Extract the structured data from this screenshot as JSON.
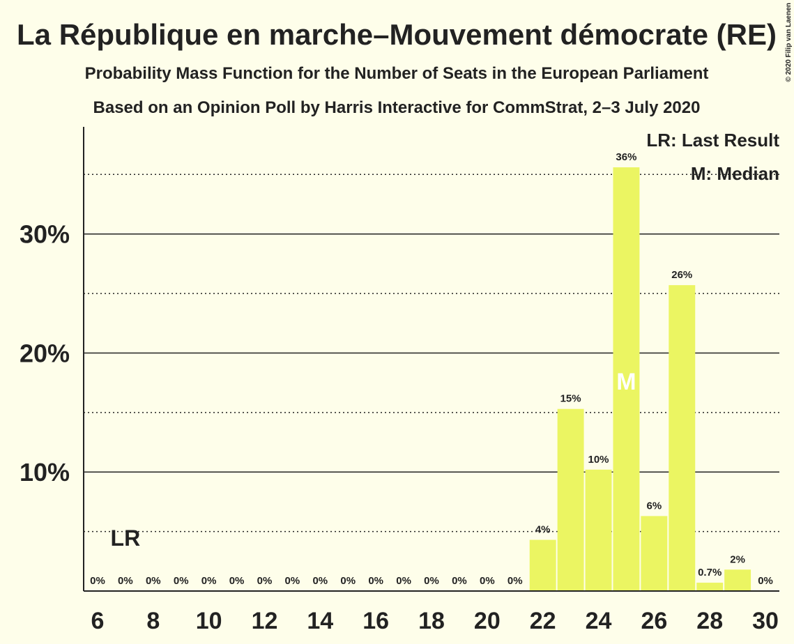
{
  "chart_data": {
    "type": "bar",
    "title": "La République en marche–Mouvement démocrate (RE)",
    "subtitle": "Probability Mass Function for the Number of Seats in the European Parliament",
    "subtitle2": "Based on an Opinion Poll by Harris Interactive for CommStrat, 2–3 July 2020",
    "copyright": "© 2020 Filip van Laenen",
    "x": [
      6,
      7,
      8,
      9,
      10,
      11,
      12,
      13,
      14,
      15,
      16,
      17,
      18,
      19,
      20,
      21,
      22,
      23,
      24,
      25,
      26,
      27,
      28,
      29,
      30
    ],
    "values": [
      0,
      0,
      0,
      0,
      0,
      0,
      0,
      0,
      0,
      0,
      0,
      0,
      0,
      0,
      0,
      0,
      4.3,
      15.3,
      10.2,
      35.6,
      6.3,
      25.7,
      0.7,
      1.8,
      0
    ],
    "value_labels": [
      "0%",
      "0%",
      "0%",
      "0%",
      "0%",
      "0%",
      "0%",
      "0%",
      "0%",
      "0%",
      "0%",
      "0%",
      "0%",
      "0%",
      "0%",
      "0%",
      "4%",
      "15%",
      "10%",
      "36%",
      "6%",
      "26%",
      "0.7%",
      "2%",
      "0%"
    ],
    "color": "#ebf562",
    "xlim": [
      5.5,
      30.5
    ],
    "xticks": [
      6,
      8,
      10,
      12,
      14,
      16,
      18,
      20,
      22,
      24,
      26,
      28,
      30
    ],
    "ylim": [
      0,
      39
    ],
    "yticks": [
      {
        "value": 10,
        "label": "10%"
      },
      {
        "value": 20,
        "label": "20%"
      },
      {
        "value": 30,
        "label": "30%"
      }
    ],
    "minor_yticks": [
      5,
      15,
      25,
      35
    ],
    "grid": true,
    "markers": [
      {
        "label": "LR",
        "x": 7
      },
      {
        "label": "M",
        "x": 25
      }
    ],
    "legend": [
      "LR: Last Result",
      "M: Median"
    ]
  }
}
